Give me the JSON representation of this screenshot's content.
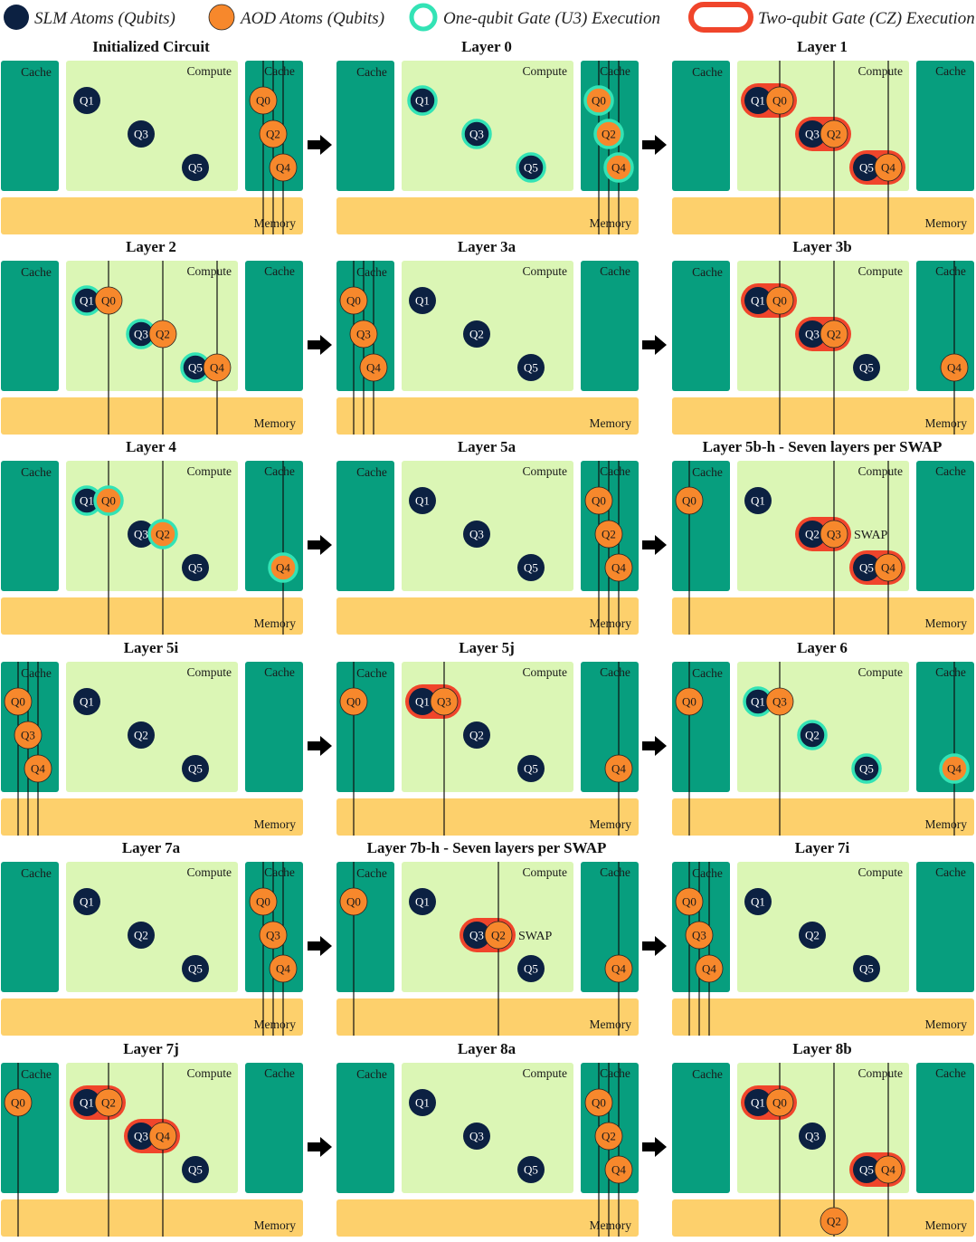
{
  "legend": {
    "slm": "SLM Atoms (Qubits)",
    "aod": "AOD Atoms (Qubits)",
    "u3": "One-qubit Gate (U3) Execution",
    "cz": "Two-qubit Gate (CZ) Execution"
  },
  "colors": {
    "cache": "#079E7E",
    "compute": "#DBF6B5",
    "memory": "#FDD06C",
    "slm": "#0C2142",
    "aod": "#F7882C",
    "u3": "#33E3B5",
    "cz": "#F0452B"
  },
  "region_labels": {
    "cache": "Cache",
    "compute": "Compute",
    "memory": "Memory"
  },
  "swap_label": "SWAP",
  "panels": [
    {
      "title": "Initialized Circuit",
      "slm": {
        "Q1": [
          1,
          1
        ],
        "Q3": [
          2,
          2
        ],
        "Q5": [
          3,
          3
        ]
      },
      "aod": {
        "Q0": [
          "R",
          1
        ],
        "Q2": [
          "R",
          2
        ],
        "Q4": [
          "R",
          3
        ]
      },
      "u3": [],
      "cz": [],
      "swap": false
    },
    {
      "title": "Layer 0",
      "slm": {
        "Q1": [
          1,
          1
        ],
        "Q3": [
          2,
          2
        ],
        "Q5": [
          3,
          3
        ]
      },
      "aod": {
        "Q0": [
          "R",
          1
        ],
        "Q2": [
          "R",
          2
        ],
        "Q4": [
          "R",
          3
        ]
      },
      "u3": [
        "Q0",
        "Q1",
        "Q2",
        "Q3",
        "Q4",
        "Q5"
      ],
      "cz": [],
      "swap": false
    },
    {
      "title": "Layer 1",
      "slm": {
        "Q1": [
          1,
          1
        ],
        "Q3": [
          2,
          2
        ],
        "Q5": [
          3,
          3
        ]
      },
      "aod": {
        "Q0": [
          1,
          1
        ],
        "Q2": [
          2,
          2
        ],
        "Q4": [
          3,
          3
        ]
      },
      "u3": [],
      "cz": [
        [
          "Q1",
          "Q0"
        ],
        [
          "Q3",
          "Q2"
        ],
        [
          "Q5",
          "Q4"
        ]
      ],
      "swap": false
    },
    {
      "title": "Layer 2",
      "slm": {
        "Q1": [
          1,
          1
        ],
        "Q3": [
          2,
          2
        ],
        "Q5": [
          3,
          3
        ]
      },
      "aod": {
        "Q0": [
          1,
          1
        ],
        "Q2": [
          2,
          2
        ],
        "Q4": [
          3,
          3
        ]
      },
      "u3": [
        "Q1",
        "Q3",
        "Q5"
      ],
      "cz": [],
      "swap": false
    },
    {
      "title": "Layer 3a",
      "slm": {
        "Q1": [
          1,
          1
        ],
        "Q2": [
          2,
          2
        ],
        "Q5": [
          3,
          3
        ]
      },
      "aod": {
        "Q0": [
          "L",
          1
        ],
        "Q3": [
          "L",
          2
        ],
        "Q4": [
          "L",
          3
        ]
      },
      "u3": [],
      "cz": [],
      "swap": false
    },
    {
      "title": "Layer 3b",
      "slm": {
        "Q1": [
          1,
          1
        ],
        "Q3": [
          2,
          2
        ],
        "Q5": [
          3,
          3
        ]
      },
      "aod": {
        "Q0": [
          1,
          1
        ],
        "Q2": [
          2,
          2
        ],
        "Q4": [
          "R",
          3
        ]
      },
      "u3": [],
      "cz": [
        [
          "Q1",
          "Q0"
        ],
        [
          "Q3",
          "Q2"
        ]
      ],
      "swap": false
    },
    {
      "title": "Layer 4",
      "slm": {
        "Q1": [
          1,
          1
        ],
        "Q3": [
          2,
          2
        ],
        "Q5": [
          3,
          3
        ]
      },
      "aod": {
        "Q0": [
          1,
          1
        ],
        "Q2": [
          2,
          2
        ],
        "Q4": [
          "R",
          3
        ]
      },
      "u3": [
        "Q1",
        "Q0",
        "Q2",
        "Q4"
      ],
      "cz": [],
      "swap": false
    },
    {
      "title": "Layer 5a",
      "slm": {
        "Q1": [
          1,
          1
        ],
        "Q3": [
          2,
          2
        ],
        "Q5": [
          3,
          3
        ]
      },
      "aod": {
        "Q0": [
          "R",
          1
        ],
        "Q2": [
          "R",
          2
        ],
        "Q4": [
          "R",
          3
        ]
      },
      "u3": [],
      "cz": [],
      "swap": false
    },
    {
      "title": "Layer 5b-h - Seven layers per SWAP",
      "slm": {
        "Q1": [
          1,
          1
        ],
        "Q2": [
          2,
          2
        ],
        "Q5": [
          3,
          3
        ]
      },
      "aod": {
        "Q0": [
          "L",
          1
        ],
        "Q3": [
          2,
          2
        ],
        "Q4": [
          3,
          3
        ]
      },
      "u3": [],
      "cz": [
        [
          "Q2",
          "Q3"
        ],
        [
          "Q5",
          "Q4"
        ]
      ],
      "swap": true
    },
    {
      "title": "Layer 5i",
      "slm": {
        "Q1": [
          1,
          1
        ],
        "Q2": [
          2,
          2
        ],
        "Q5": [
          3,
          3
        ]
      },
      "aod": {
        "Q0": [
          "L",
          1
        ],
        "Q3": [
          "L",
          2
        ],
        "Q4": [
          "L",
          3
        ]
      },
      "u3": [],
      "cz": [],
      "swap": false
    },
    {
      "title": "Layer 5j",
      "slm": {
        "Q1": [
          1,
          1
        ],
        "Q2": [
          2,
          2
        ],
        "Q5": [
          3,
          3
        ]
      },
      "aod": {
        "Q0": [
          "L",
          1
        ],
        "Q3": [
          1,
          1
        ],
        "Q4": [
          "R",
          3
        ]
      },
      "u3": [],
      "cz": [
        [
          "Q1",
          "Q3"
        ]
      ],
      "swap": false
    },
    {
      "title": "Layer 6",
      "slm": {
        "Q1": [
          1,
          1
        ],
        "Q2": [
          2,
          2
        ],
        "Q5": [
          3,
          3
        ]
      },
      "aod": {
        "Q0": [
          "L",
          1
        ],
        "Q3": [
          1,
          1
        ],
        "Q4": [
          "R",
          3
        ]
      },
      "u3": [
        "Q1",
        "Q2",
        "Q5",
        "Q4"
      ],
      "cz": [],
      "swap": false
    },
    {
      "title": "Layer 7a",
      "slm": {
        "Q1": [
          1,
          1
        ],
        "Q2": [
          2,
          2
        ],
        "Q5": [
          3,
          3
        ]
      },
      "aod": {
        "Q0": [
          "R",
          1
        ],
        "Q3": [
          "R",
          2
        ],
        "Q4": [
          "R",
          3
        ]
      },
      "u3": [],
      "cz": [],
      "swap": false
    },
    {
      "title": "Layer 7b-h - Seven layers per SWAP",
      "slm": {
        "Q1": [
          1,
          1
        ],
        "Q3": [
          2,
          2
        ],
        "Q5": [
          3,
          3
        ]
      },
      "aod": {
        "Q0": [
          "L",
          1
        ],
        "Q2": [
          2,
          2
        ],
        "Q4": [
          "R",
          3
        ]
      },
      "u3": [],
      "cz": [
        [
          "Q3",
          "Q2"
        ]
      ],
      "swap": true
    },
    {
      "title": "Layer 7i",
      "slm": {
        "Q1": [
          1,
          1
        ],
        "Q2": [
          2,
          2
        ],
        "Q5": [
          3,
          3
        ]
      },
      "aod": {
        "Q0": [
          "L",
          1
        ],
        "Q3": [
          "L",
          2
        ],
        "Q4": [
          "L",
          3
        ]
      },
      "u3": [],
      "cz": [],
      "swap": false
    },
    {
      "title": "Layer 7j",
      "slm": {
        "Q1": [
          1,
          1
        ],
        "Q3": [
          2,
          2
        ],
        "Q5": [
          3,
          3
        ]
      },
      "aod": {
        "Q0": [
          "L",
          1
        ],
        "Q2": [
          1,
          1
        ],
        "Q4": [
          2,
          2
        ]
      },
      "u3": [],
      "cz": [
        [
          "Q1",
          "Q2"
        ],
        [
          "Q3",
          "Q4"
        ]
      ],
      "swap": false
    },
    {
      "title": "Layer 8a",
      "slm": {
        "Q1": [
          1,
          1
        ],
        "Q3": [
          2,
          2
        ],
        "Q5": [
          3,
          3
        ]
      },
      "aod": {
        "Q0": [
          "R",
          1
        ],
        "Q2": [
          "R",
          2
        ],
        "Q4": [
          "R",
          3
        ]
      },
      "u3": [],
      "cz": [],
      "swap": false
    },
    {
      "title": "Layer 8b",
      "slm": {
        "Q1": [
          1,
          1
        ],
        "Q3": [
          2,
          2
        ],
        "Q5": [
          3,
          3
        ]
      },
      "aod": {
        "Q0": [
          1,
          1
        ],
        "Q2": [
          "M",
          0
        ],
        "Q4": [
          3,
          3
        ]
      },
      "u3": [],
      "cz": [
        [
          "Q1",
          "Q0"
        ],
        [
          "Q5",
          "Q4"
        ]
      ],
      "swap": false
    }
  ]
}
